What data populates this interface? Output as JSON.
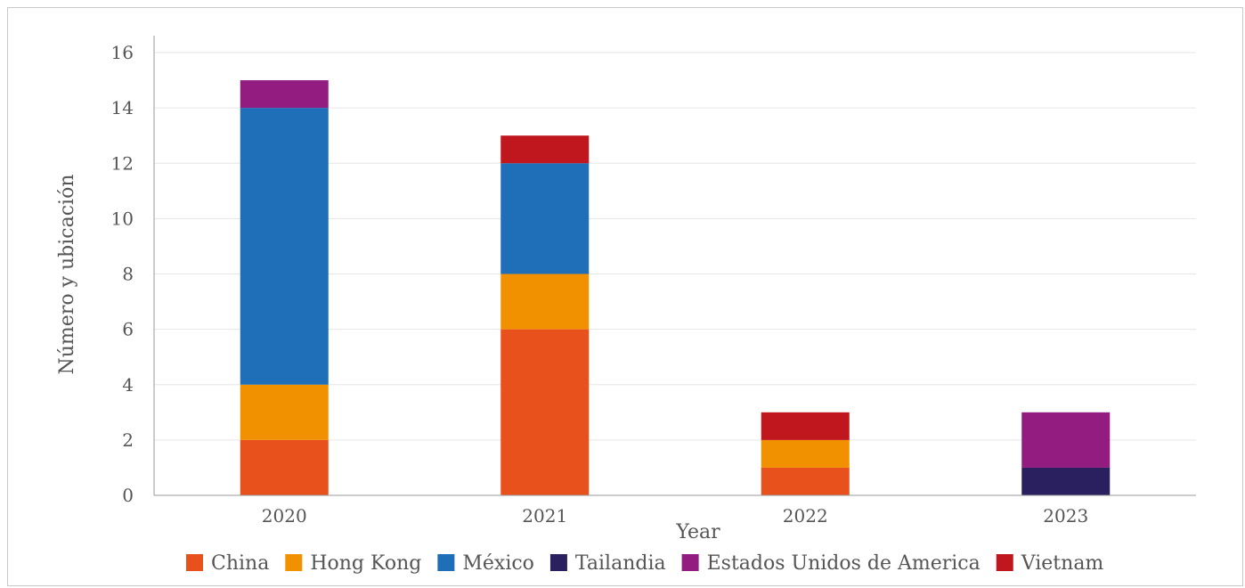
{
  "chart_data": {
    "type": "bar",
    "stacked": true,
    "title": "",
    "xlabel": "Year",
    "ylabel": "Número y ubicación",
    "ylim": [
      0,
      16
    ],
    "yticks": [
      0,
      2,
      4,
      6,
      8,
      10,
      12,
      14,
      16
    ],
    "categories": [
      "2020",
      "2021",
      "2022",
      "2023"
    ],
    "grid": true,
    "legend_position": "bottom",
    "series": [
      {
        "name": "China",
        "color": "#e8501c",
        "values": [
          2,
          6,
          1,
          0
        ]
      },
      {
        "name": "Hong Kong",
        "color": "#f29100",
        "values": [
          2,
          2,
          1,
          0
        ]
      },
      {
        "name": "México",
        "color": "#1f6fb8",
        "values": [
          10,
          4,
          0,
          0
        ]
      },
      {
        "name": "Tailandia",
        "color": "#2a2060",
        "values": [
          0,
          0,
          0,
          1
        ]
      },
      {
        "name": "Estados Unidos de America",
        "color": "#921c80",
        "values": [
          1,
          0,
          0,
          2
        ]
      },
      {
        "name": "Vietnam",
        "color": "#c0171f",
        "values": [
          0,
          1,
          1,
          0
        ]
      }
    ]
  }
}
